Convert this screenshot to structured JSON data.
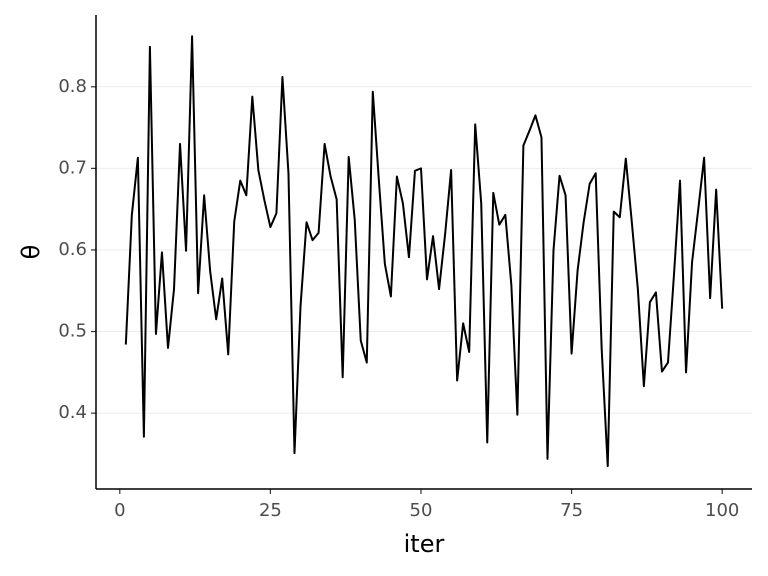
{
  "chart_data": {
    "type": "line",
    "x_label": "iter",
    "y_label": "θ",
    "x": [
      1,
      2,
      3,
      4,
      5,
      6,
      7,
      8,
      9,
      10,
      11,
      12,
      13,
      14,
      15,
      16,
      17,
      18,
      19,
      20,
      21,
      22,
      23,
      24,
      25,
      26,
      27,
      28,
      29,
      30,
      31,
      32,
      33,
      34,
      35,
      36,
      37,
      38,
      39,
      40,
      41,
      42,
      43,
      44,
      45,
      46,
      47,
      48,
      49,
      50,
      51,
      52,
      53,
      54,
      55,
      56,
      57,
      58,
      59,
      60,
      61,
      62,
      63,
      64,
      65,
      66,
      67,
      68,
      69,
      70,
      71,
      72,
      73,
      74,
      75,
      76,
      77,
      78,
      79,
      80,
      81,
      82,
      83,
      84,
      85,
      86,
      87,
      88,
      89,
      90,
      91,
      92,
      93,
      94,
      95,
      96,
      97,
      98,
      99,
      100
    ],
    "series": [
      {
        "color": "#000000",
        "values": [
          0.484,
          0.643,
          0.713,
          0.371,
          0.849,
          0.497,
          0.597,
          0.48,
          0.552,
          0.73,
          0.599,
          0.862,
          0.547,
          0.667,
          0.574,
          0.515,
          0.565,
          0.472,
          0.635,
          0.685,
          0.667,
          0.788,
          0.698,
          0.661,
          0.628,
          0.645,
          0.812,
          0.694,
          0.351,
          0.531,
          0.634,
          0.612,
          0.621,
          0.73,
          0.69,
          0.662,
          0.444,
          0.714,
          0.637,
          0.489,
          0.462,
          0.794,
          0.686,
          0.583,
          0.543,
          0.69,
          0.657,
          0.591,
          0.697,
          0.7,
          0.564,
          0.617,
          0.552,
          0.619,
          0.698,
          0.44,
          0.51,
          0.475,
          0.754,
          0.657,
          0.364,
          0.67,
          0.631,
          0.643,
          0.557,
          0.398,
          0.728,
          0.746,
          0.765,
          0.738,
          0.344,
          0.6,
          0.691,
          0.667,
          0.473,
          0.575,
          0.634,
          0.681,
          0.694,
          0.478,
          0.335,
          0.647,
          0.64,
          0.712,
          0.634,
          0.552,
          0.433,
          0.536,
          0.548,
          0.451,
          0.462,
          0.57,
          0.685,
          0.45,
          0.585,
          0.648,
          0.713,
          0.541,
          0.674,
          0.528
        ]
      }
    ],
    "xlim": [
      -3.95,
      104.95
    ],
    "ylim": [
      0.307,
      0.888
    ],
    "xticks": [
      0,
      25,
      50,
      75,
      100
    ],
    "yticks": [
      0.4,
      0.5,
      0.6,
      0.7,
      0.8
    ],
    "grid": true
  }
}
